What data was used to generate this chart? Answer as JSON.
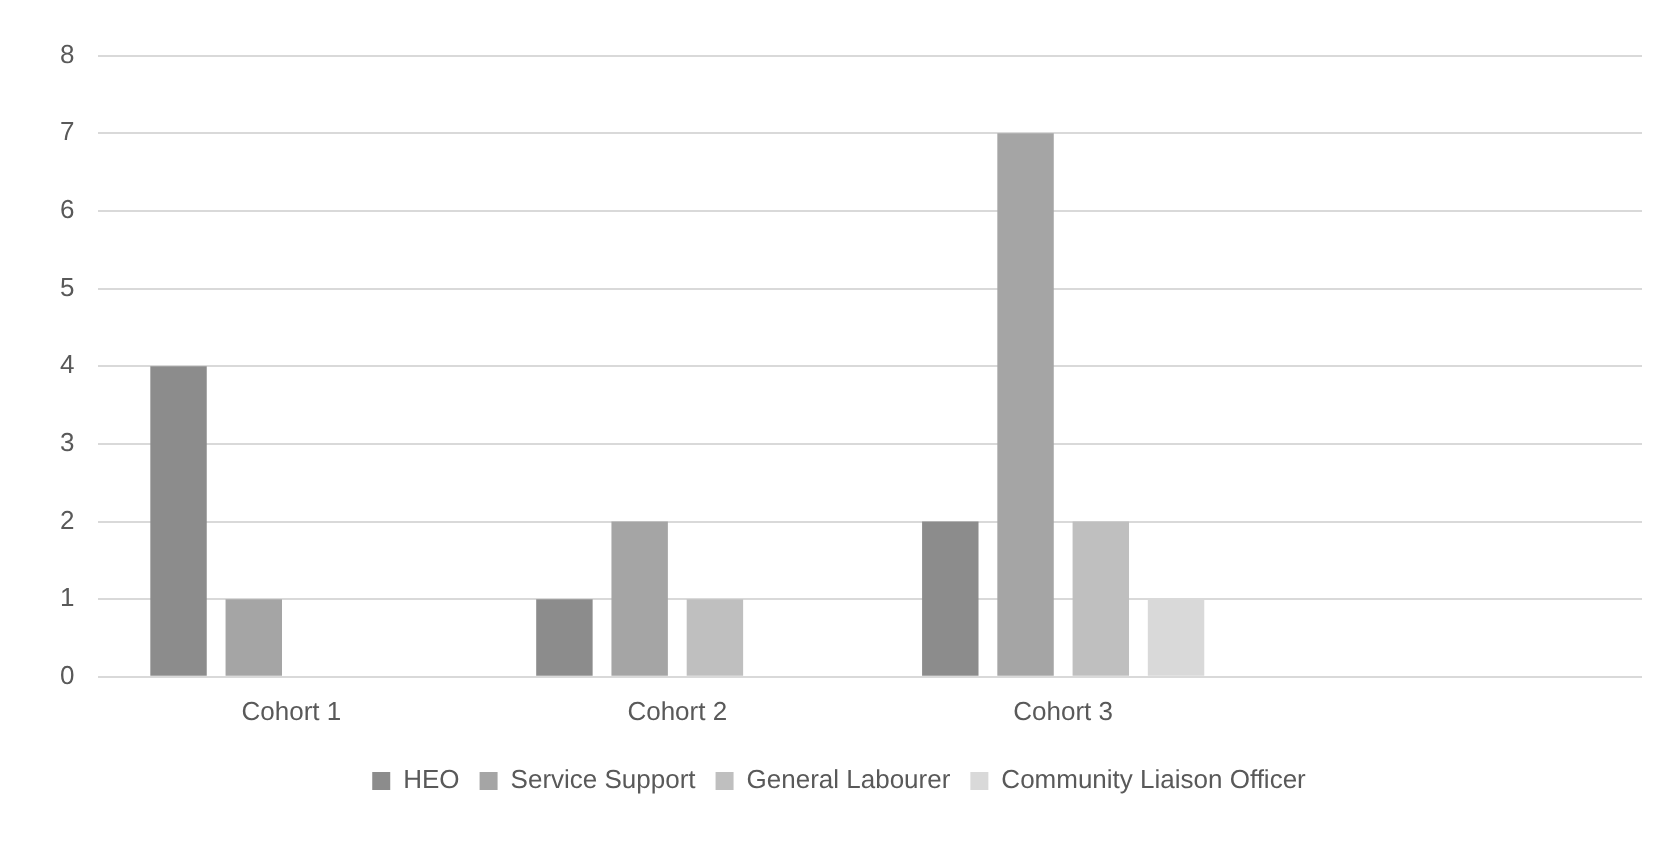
{
  "chart_data": {
    "type": "bar",
    "categories": [
      "Cohort 1",
      "Cohort 2",
      "Cohort 3",
      null
    ],
    "series": [
      {
        "name": "HEO",
        "color": "#8c8c8c",
        "values": [
          4,
          1,
          2,
          null
        ]
      },
      {
        "name": "Service Support",
        "color": "#a5a5a5",
        "values": [
          1,
          2,
          7,
          null
        ]
      },
      {
        "name": "General Labourer",
        "color": "#bfbfbf",
        "values": [
          0,
          1,
          2,
          null
        ]
      },
      {
        "name": "Community Liaison Officer",
        "color": "#d9d9d9",
        "values": [
          0,
          0,
          1,
          null
        ]
      }
    ],
    "ylim": [
      0,
      8
    ],
    "yticks": [
      0,
      1,
      2,
      3,
      4,
      5,
      6,
      7,
      8
    ],
    "grid": "y",
    "legend": "bottom"
  }
}
